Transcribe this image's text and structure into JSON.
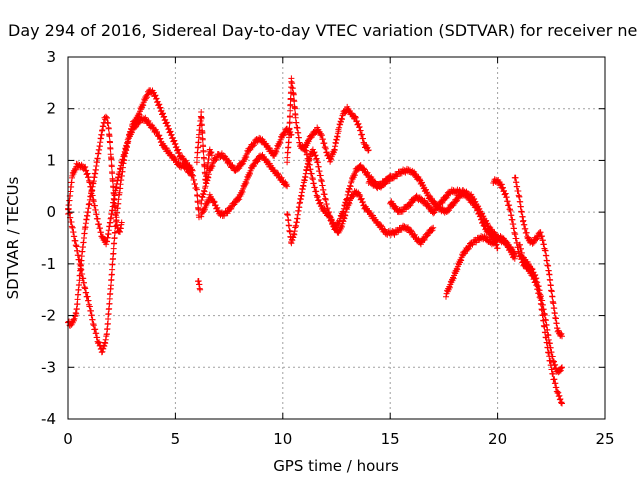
{
  "chart_data": {
    "type": "scatter",
    "title": "Day 294 of 2016, Sidereal Day-to-day VTEC variation (SDTVAR) for receiver ne",
    "xlabel": "GPS time / hours",
    "ylabel": "SDTVAR / TECUs",
    "xlim": [
      0,
      25
    ],
    "ylim": [
      -4,
      3
    ],
    "xticks": [
      "0",
      "5",
      "10",
      "15",
      "20",
      "25"
    ],
    "yticks": [
      "-4",
      "-3",
      "-2",
      "-1",
      "0",
      "1",
      "2",
      "3"
    ],
    "grid": true,
    "legend": "none",
    "marker": "plus",
    "color": "#ff0000",
    "series": [
      {
        "x": [
          0.0,
          0.2,
          0.4,
          0.6,
          0.8,
          1.0,
          1.2,
          1.4,
          1.6,
          1.8,
          2.0,
          2.2,
          2.4,
          2.6,
          2.8,
          3.0,
          3.2,
          3.4,
          3.6,
          3.8,
          4.0,
          4.2,
          4.4,
          4.6,
          4.8,
          5.0,
          5.2,
          5.4,
          5.6,
          5.8,
          6.0,
          6.1
        ],
        "y": [
          0.0,
          0.7,
          0.9,
          0.9,
          0.85,
          0.6,
          0.2,
          -0.2,
          -0.5,
          -0.6,
          -0.1,
          0.4,
          0.8,
          1.1,
          1.4,
          1.6,
          1.7,
          1.8,
          1.8,
          1.7,
          1.6,
          1.5,
          1.3,
          1.2,
          1.1,
          1.0,
          0.9,
          0.9,
          0.8,
          0.7,
          0.4,
          -0.1
        ]
      },
      {
        "x": [
          0.0,
          0.2,
          0.4,
          0.6,
          0.8,
          1.0,
          1.2,
          1.4,
          1.6,
          1.8,
          2.0,
          2.2,
          2.4,
          2.6,
          2.8,
          3.0,
          3.2,
          3.4,
          3.6,
          3.8,
          4.0,
          4.2,
          4.4,
          4.6,
          4.8,
          5.0,
          5.2,
          5.4,
          5.6,
          5.8
        ],
        "y": [
          0.1,
          -0.3,
          -0.7,
          -1.1,
          -1.5,
          -1.8,
          -2.2,
          -2.5,
          -2.7,
          -2.4,
          -1.4,
          -0.3,
          0.4,
          1.0,
          1.4,
          1.7,
          1.8,
          2.0,
          2.2,
          2.35,
          2.3,
          2.1,
          1.9,
          1.7,
          1.5,
          1.3,
          1.1,
          1.0,
          0.9,
          0.8
        ]
      },
      {
        "x": [
          0.0,
          0.1,
          0.2,
          0.3,
          0.4,
          0.6,
          0.8,
          1.0,
          1.2,
          1.4,
          1.6,
          1.7,
          1.8,
          1.9,
          2.0,
          2.1,
          2.2,
          2.3,
          2.4,
          2.5
        ],
        "y": [
          -2.1,
          -2.2,
          -2.15,
          -2.05,
          -1.9,
          -1.0,
          -0.3,
          0.2,
          0.6,
          1.1,
          1.6,
          1.8,
          1.85,
          1.6,
          1.1,
          0.5,
          0.0,
          -0.3,
          -0.4,
          -0.2
        ]
      },
      {
        "x": [
          6.2,
          6.4,
          6.6,
          6.8,
          7.0,
          7.2,
          7.4,
          7.6,
          7.8,
          8.0,
          8.2,
          8.4,
          8.6,
          8.8,
          9.0,
          9.2,
          9.4,
          9.6,
          9.8,
          10.0,
          10.2,
          10.4
        ],
        "y": [
          0.2,
          0.5,
          0.8,
          1.0,
          1.1,
          1.1,
          1.0,
          0.9,
          0.8,
          0.9,
          1.0,
          1.2,
          1.3,
          1.4,
          1.4,
          1.3,
          1.2,
          1.1,
          1.3,
          1.5,
          1.6,
          1.5
        ]
      },
      {
        "x": [
          6.2,
          6.4,
          6.6,
          6.8,
          7.0,
          7.2,
          7.4,
          7.6,
          7.8,
          8.0,
          8.2,
          8.4,
          8.6,
          8.8,
          9.0,
          9.2,
          9.4,
          9.6,
          9.8,
          10.0,
          10.2
        ],
        "y": [
          -0.05,
          0.1,
          0.3,
          0.2,
          0.0,
          -0.05,
          0.0,
          0.1,
          0.2,
          0.3,
          0.5,
          0.7,
          0.9,
          1.0,
          1.1,
          1.0,
          0.9,
          0.8,
          0.7,
          0.6,
          0.5
        ]
      },
      {
        "x": [
          6.0,
          6.1,
          6.2,
          6.3,
          6.4,
          6.5,
          6.6,
          6.7
        ],
        "y": [
          1.0,
          1.5,
          1.9,
          1.2,
          0.6,
          0.9,
          1.2,
          1.1
        ]
      },
      {
        "x": [
          6.05,
          6.1,
          6.15
        ],
        "y": [
          -1.3,
          -1.4,
          -1.5
        ]
      },
      {
        "x": [
          10.2,
          10.3,
          10.4,
          10.5,
          10.6,
          10.8,
          11.0,
          11.2,
          11.4,
          11.6,
          11.8,
          12.0,
          12.2,
          12.4,
          12.6,
          12.8,
          13.0,
          13.2,
          13.4,
          13.6,
          13.8,
          14.0
        ],
        "y": [
          1.0,
          1.5,
          2.55,
          2.3,
          1.8,
          1.3,
          1.2,
          1.4,
          1.5,
          1.6,
          1.5,
          1.2,
          1.0,
          1.2,
          1.6,
          1.9,
          2.0,
          1.9,
          1.8,
          1.6,
          1.3,
          1.2
        ]
      },
      {
        "x": [
          10.2,
          10.4,
          10.6,
          10.8,
          11.0,
          11.2,
          11.4,
          11.6,
          11.8,
          12.0,
          12.2,
          12.4,
          12.6,
          12.8,
          13.0,
          13.2,
          13.4,
          13.6,
          13.8,
          14.0,
          14.2,
          14.4,
          14.6,
          14.8,
          15.0
        ],
        "y": [
          0.0,
          -0.6,
          -0.3,
          0.2,
          0.6,
          1.0,
          1.2,
          1.0,
          0.6,
          0.2,
          -0.1,
          -0.3,
          -0.2,
          0.0,
          0.3,
          0.6,
          0.8,
          0.9,
          0.8,
          0.7,
          0.6,
          0.5,
          0.5,
          0.6,
          0.7
        ]
      },
      {
        "x": [
          11.0,
          11.2,
          11.4,
          11.6,
          11.8,
          12.0,
          12.2,
          12.4,
          12.6,
          12.8,
          13.0,
          13.2,
          13.4,
          13.6,
          13.8,
          14.0,
          14.2,
          14.4,
          14.6,
          14.8,
          15.0,
          15.2,
          15.4,
          15.6,
          15.8,
          16.0,
          16.2,
          16.4,
          16.6,
          16.8,
          17.0
        ],
        "y": [
          1.3,
          1.0,
          0.6,
          0.3,
          0.1,
          0.0,
          -0.1,
          -0.3,
          -0.4,
          -0.2,
          0.1,
          0.3,
          0.4,
          0.3,
          0.1,
          0.0,
          -0.1,
          -0.2,
          -0.3,
          -0.4,
          -0.4,
          -0.4,
          -0.35,
          -0.3,
          -0.3,
          -0.4,
          -0.5,
          -0.6,
          -0.5,
          -0.4,
          -0.3
        ]
      },
      {
        "x": [
          14.0,
          14.4,
          14.8,
          15.2,
          15.6,
          16.0,
          16.4,
          16.8,
          17.2,
          17.6,
          18.0,
          18.4,
          18.8,
          19.2,
          19.6,
          20.0,
          20.4,
          20.8
        ],
        "y": [
          0.6,
          0.5,
          0.6,
          0.7,
          0.8,
          0.8,
          0.6,
          0.3,
          0.1,
          0.0,
          0.2,
          0.4,
          0.3,
          0.0,
          -0.3,
          -0.5,
          -0.6,
          -0.9
        ]
      },
      {
        "x": [
          15.0,
          15.4,
          15.8,
          16.2,
          16.6,
          17.0,
          17.4,
          17.8,
          18.2,
          18.6,
          19.0,
          19.4,
          19.8,
          20.0
        ],
        "y": [
          0.2,
          0.0,
          0.1,
          0.3,
          0.2,
          0.0,
          0.2,
          0.4,
          0.4,
          0.3,
          0.1,
          -0.3,
          -0.5,
          -0.7
        ]
      },
      {
        "x": [
          17.6,
          17.8,
          18.0,
          18.2,
          18.4,
          18.6,
          18.8,
          19.0,
          19.2,
          19.4,
          19.6,
          19.8,
          20.0,
          20.2,
          20.4,
          20.6,
          20.8
        ],
        "y": [
          -1.6,
          -1.4,
          -1.2,
          -1.0,
          -0.8,
          -0.7,
          -0.6,
          -0.55,
          -0.5,
          -0.5,
          -0.55,
          -0.6,
          -0.5,
          -0.5,
          -0.6,
          -0.7,
          -0.8
        ]
      },
      {
        "x": [
          19.8,
          20.0,
          20.2,
          20.4,
          20.6,
          20.8,
          21.0,
          21.2,
          21.4,
          21.6,
          21.8,
          22.0,
          22.2,
          22.4,
          22.6,
          22.8,
          23.0
        ],
        "y": [
          0.6,
          0.6,
          0.5,
          0.3,
          0.0,
          -0.4,
          -0.8,
          -1.0,
          -1.1,
          -1.2,
          -1.4,
          -1.7,
          -2.3,
          -2.8,
          -3.2,
          -3.5,
          -3.7
        ]
      },
      {
        "x": [
          20.8,
          21.0,
          21.2,
          21.4,
          21.6,
          21.8,
          22.0,
          22.2,
          22.4,
          22.6,
          22.8,
          23.0
        ],
        "y": [
          0.7,
          0.3,
          -0.2,
          -0.5,
          -0.6,
          -0.5,
          -0.4,
          -0.7,
          -1.2,
          -1.8,
          -2.3,
          -2.4
        ]
      },
      {
        "x": [
          21.0,
          21.2,
          21.4,
          21.6,
          21.8,
          22.0,
          22.2,
          22.4,
          22.6,
          22.8,
          23.0
        ],
        "y": [
          -0.6,
          -0.9,
          -1.0,
          -1.1,
          -1.3,
          -1.6,
          -2.0,
          -2.5,
          -2.9,
          -3.1,
          -3.0
        ]
      }
    ]
  }
}
